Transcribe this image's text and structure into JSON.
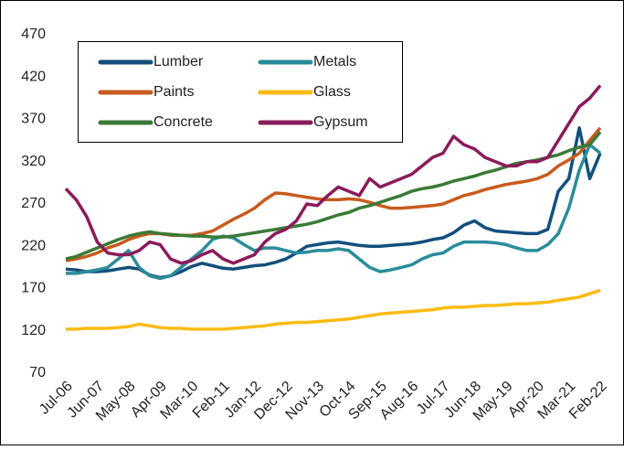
{
  "chart_data": {
    "type": "line",
    "categories": [
      "Jul-06",
      null,
      null,
      "Jun-07",
      null,
      null,
      "May-08",
      null,
      null,
      "Apr-09",
      null,
      null,
      "Mar-10",
      null,
      null,
      "Feb-11",
      null,
      null,
      "Jan-12",
      null,
      null,
      "Dec-12",
      null,
      null,
      "Nov-13",
      null,
      null,
      "Oct-14",
      null,
      null,
      "Sep-15",
      null,
      null,
      "Aug-16",
      null,
      null,
      "Jul-17",
      null,
      null,
      "Jun-18",
      null,
      null,
      "May-19",
      null,
      null,
      "Apr-20",
      null,
      null,
      "Mar-21",
      null,
      null,
      "Feb-22"
    ],
    "series": [
      {
        "name": "Lumber",
        "color": "#134f7c",
        "values": [
          193,
          192,
          190,
          190,
          191,
          193,
          195,
          193,
          186,
          183,
          185,
          190,
          196,
          200,
          197,
          194,
          193,
          195,
          197,
          198,
          201,
          205,
          212,
          220,
          222,
          224,
          225,
          223,
          221,
          220,
          220,
          221,
          222,
          223,
          225,
          228,
          230,
          236,
          245,
          250,
          242,
          238,
          237,
          236,
          235,
          235,
          240,
          285,
          300,
          360,
          300,
          330
        ]
      },
      {
        "name": "Metals",
        "color": "#2a8c9a",
        "values": [
          188,
          188,
          190,
          192,
          195,
          205,
          215,
          195,
          185,
          182,
          185,
          195,
          205,
          215,
          228,
          232,
          230,
          222,
          215,
          218,
          218,
          215,
          212,
          213,
          215,
          215,
          217,
          215,
          205,
          195,
          190,
          192,
          195,
          198,
          205,
          210,
          212,
          220,
          225,
          225,
          225,
          224,
          222,
          218,
          215,
          215,
          222,
          235,
          265,
          310,
          340,
          330
        ]
      },
      {
        "name": "Paints",
        "color": "#c85b1e",
        "values": [
          203,
          205,
          208,
          212,
          218,
          222,
          228,
          232,
          235,
          235,
          233,
          233,
          233,
          235,
          238,
          245,
          252,
          258,
          265,
          275,
          283,
          282,
          280,
          278,
          276,
          275,
          275,
          276,
          275,
          272,
          268,
          265,
          265,
          266,
          267,
          268,
          270,
          275,
          280,
          283,
          287,
          290,
          293,
          295,
          297,
          300,
          305,
          315,
          322,
          330,
          345,
          360
        ]
      },
      {
        "name": "Glass",
        "color": "#fbbb12",
        "values": [
          122,
          122,
          123,
          123,
          123,
          124,
          125,
          128,
          126,
          124,
          123,
          123,
          122,
          122,
          122,
          122,
          123,
          124,
          125,
          126,
          128,
          129,
          130,
          130,
          131,
          132,
          133,
          134,
          136,
          138,
          140,
          141,
          142,
          143,
          144,
          145,
          147,
          148,
          148,
          149,
          150,
          150,
          151,
          152,
          152,
          153,
          154,
          156,
          158,
          160,
          164,
          168
        ]
      },
      {
        "name": "Concrete",
        "color": "#3a7a35",
        "values": [
          205,
          208,
          213,
          218,
          223,
          228,
          232,
          235,
          237,
          235,
          234,
          233,
          232,
          232,
          231,
          231,
          232,
          234,
          236,
          238,
          240,
          242,
          244,
          246,
          249,
          253,
          257,
          260,
          265,
          268,
          272,
          276,
          280,
          285,
          288,
          290,
          293,
          297,
          300,
          303,
          307,
          310,
          314,
          318,
          320,
          322,
          325,
          328,
          333,
          337,
          340,
          355
        ]
      },
      {
        "name": "Gypsum",
        "color": "#8a1c5a",
        "values": [
          288,
          275,
          255,
          225,
          212,
          210,
          210,
          215,
          225,
          222,
          205,
          200,
          203,
          210,
          215,
          205,
          200,
          205,
          210,
          225,
          235,
          240,
          250,
          270,
          268,
          280,
          290,
          285,
          280,
          300,
          290,
          295,
          300,
          305,
          315,
          325,
          330,
          350,
          340,
          335,
          325,
          320,
          315,
          315,
          320,
          320,
          325,
          345,
          365,
          385,
          395,
          410
        ]
      }
    ],
    "ylim": [
      70,
      470
    ],
    "yticks": [
      70,
      120,
      170,
      220,
      270,
      320,
      370,
      420,
      470
    ],
    "grid": false,
    "legend": "top-left"
  }
}
